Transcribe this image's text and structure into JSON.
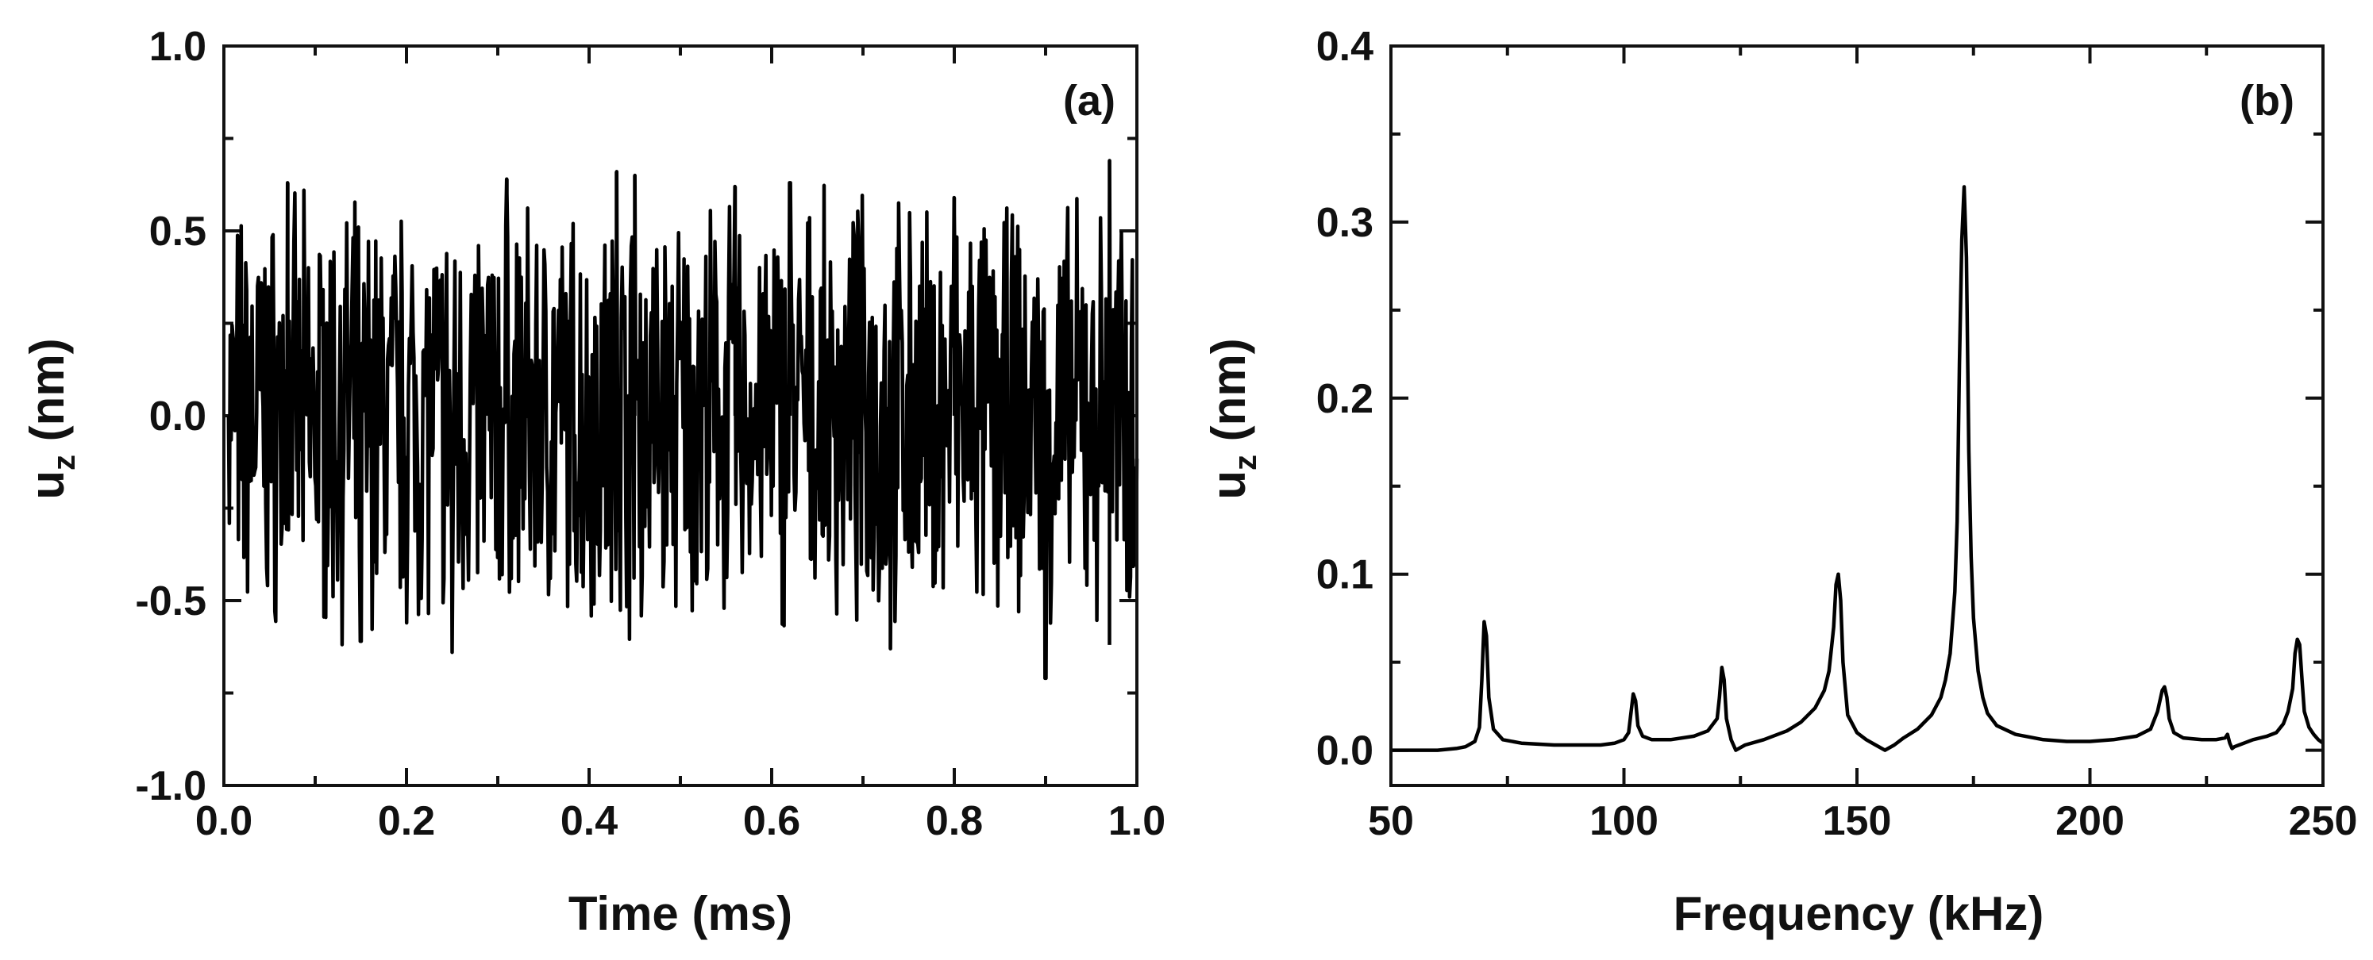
{
  "chart_data": [
    {
      "type": "line",
      "panel_label": "(a)",
      "xlabel": "Time (ms)",
      "ylabel": {
        "base": "u",
        "subscript": "z",
        "suffix": " (nm)"
      },
      "xlim": [
        0.0,
        1.0
      ],
      "ylim": [
        -1.0,
        1.0
      ],
      "xticks": [
        "0.0",
        "0.2",
        "0.4",
        "0.6",
        "0.8",
        "1.0"
      ],
      "yticks": [
        "-1.0",
        "-0.5",
        "0.0",
        "0.5",
        "1.0"
      ],
      "grid": false,
      "legend": "none",
      "series": [
        {
          "sample_count": 1000,
          "peak_points": [
            [
              0.07,
              0.63
            ],
            [
              0.15,
              -0.61
            ],
            [
              0.25,
              -0.64
            ],
            [
              0.31,
              0.64
            ],
            [
              0.43,
              0.66
            ],
            [
              0.45,
              0.65
            ],
            [
              0.56,
              0.62
            ],
            [
              0.62,
              0.63
            ],
            [
              0.73,
              -0.63
            ],
            [
              0.8,
              0.59
            ],
            [
              0.9,
              -0.71
            ],
            [
              0.97,
              0.69
            ],
            [
              0.97,
              -0.62
            ]
          ]
        }
      ]
    },
    {
      "type": "line",
      "panel_label": "(b)",
      "xlabel": "Frequency (kHz)",
      "ylabel": {
        "base": "u",
        "subscript": "z",
        "suffix": " (nm)"
      },
      "xlim": [
        50,
        250
      ],
      "ylim": [
        -0.02,
        0.4
      ],
      "xticks": [
        "50",
        "100",
        "150",
        "200",
        "250"
      ],
      "yticks": [
        "0.0",
        "0.1",
        "0.2",
        "0.3",
        "0.4"
      ],
      "grid": false,
      "legend": "none",
      "series": [
        {
          "x": [
            50,
            55,
            60,
            64,
            66,
            68,
            69,
            69.5,
            70,
            70.5,
            71,
            72,
            74,
            78,
            85,
            90,
            95,
            98,
            100,
            101,
            102,
            102.5,
            103,
            104,
            106,
            110,
            115,
            118,
            120,
            120.5,
            121,
            121.5,
            122,
            123,
            124,
            126,
            130,
            135,
            138,
            141,
            143,
            144,
            145,
            145.5,
            146,
            146.5,
            147,
            148,
            150,
            152,
            154,
            156,
            158,
            160,
            163,
            166,
            168,
            169,
            170,
            171,
            171.5,
            172,
            172.5,
            173,
            173.5,
            174,
            174.5,
            175,
            176,
            177,
            178,
            180,
            184,
            190,
            195,
            200,
            205,
            210,
            213,
            214.5,
            215.5,
            216,
            216.5,
            217,
            218,
            220,
            224,
            227,
            229,
            229.5,
            230,
            230.5,
            231,
            232,
            235,
            238,
            240,
            241.5,
            242.5,
            243.5,
            244,
            244.5,
            245,
            245.5,
            246,
            247,
            248,
            249,
            250
          ],
          "y": [
            0.0,
            0.0,
            0.0,
            0.001,
            0.002,
            0.005,
            0.013,
            0.04,
            0.073,
            0.065,
            0.03,
            0.012,
            0.006,
            0.004,
            0.003,
            0.003,
            0.003,
            0.004,
            0.006,
            0.01,
            0.032,
            0.028,
            0.014,
            0.008,
            0.006,
            0.006,
            0.008,
            0.011,
            0.018,
            0.03,
            0.047,
            0.04,
            0.018,
            0.006,
            0.0,
            0.003,
            0.006,
            0.011,
            0.016,
            0.024,
            0.034,
            0.045,
            0.07,
            0.094,
            0.1,
            0.085,
            0.05,
            0.02,
            0.01,
            0.006,
            0.003,
            0.0,
            0.003,
            0.007,
            0.012,
            0.02,
            0.03,
            0.04,
            0.055,
            0.09,
            0.13,
            0.22,
            0.29,
            0.32,
            0.28,
            0.17,
            0.11,
            0.075,
            0.045,
            0.03,
            0.021,
            0.014,
            0.009,
            0.006,
            0.005,
            0.005,
            0.006,
            0.008,
            0.012,
            0.022,
            0.034,
            0.036,
            0.03,
            0.018,
            0.01,
            0.007,
            0.006,
            0.006,
            0.007,
            0.009,
            0.004,
            0.001,
            0.002,
            0.003,
            0.006,
            0.008,
            0.01,
            0.015,
            0.022,
            0.035,
            0.055,
            0.063,
            0.06,
            0.04,
            0.022,
            0.013,
            0.009,
            0.006,
            0.004
          ]
        }
      ]
    }
  ]
}
